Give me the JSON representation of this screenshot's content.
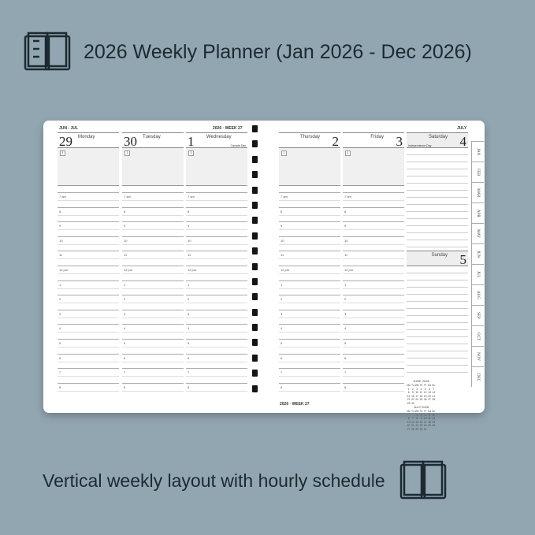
{
  "header": {
    "title": "2026 Weekly Planner (Jan 2026 - Dec 2026)",
    "icon": "open-book-icon"
  },
  "footer": {
    "title": "Vertical weekly layout with hourly schedule",
    "icon": "open-book-icon"
  },
  "planner": {
    "left_range": "JUN - JUL",
    "left_week": "2026 · WEEK 27",
    "right_month": "JULY",
    "bottom_week": "2026 · WEEK 27",
    "info_glyph": "i",
    "days": [
      {
        "num": "29",
        "name": "Monday"
      },
      {
        "num": "30",
        "name": "Tuesday"
      },
      {
        "num": "1",
        "name": "Wednesday",
        "holiday": "Canada Day"
      },
      {
        "num": "2",
        "name": "Thursday"
      },
      {
        "num": "3",
        "name": "Friday"
      },
      {
        "num": "4",
        "name": "Saturday",
        "holiday": "Independence Day"
      },
      {
        "num": "5",
        "name": "Sunday"
      }
    ],
    "hours": [
      "7 am",
      "8",
      "9",
      "10",
      "11",
      "12 pm",
      "1",
      "2",
      "3",
      "4",
      "5",
      "6",
      "7",
      "8"
    ],
    "tabs": [
      "JAN",
      "FEB",
      "MAR",
      "APR",
      "MAY",
      "JUN",
      "JUL",
      "AUG",
      "SEP",
      "OCT",
      "NOV",
      "DEC"
    ],
    "mini_calendars": [
      {
        "title": "JUNE 2026",
        "head": [
          "Mo",
          "Tu",
          "We",
          "Th",
          "Fr",
          "Sa",
          "Su"
        ],
        "weeks": [
          [
            "1",
            "2",
            "3",
            "4",
            "5",
            "6",
            "7"
          ],
          [
            "8",
            "9",
            "10",
            "11",
            "12",
            "13",
            "14"
          ],
          [
            "15",
            "16",
            "17",
            "18",
            "19",
            "20",
            "21"
          ],
          [
            "22",
            "23",
            "24",
            "25",
            "26",
            "27",
            "28"
          ],
          [
            "29",
            "30",
            "",
            "",
            "",
            "",
            ""
          ]
        ]
      },
      {
        "title": "JULY 2026",
        "head": [
          "Mo",
          "Tu",
          "We",
          "Th",
          "Fr",
          "Sa",
          "Su"
        ],
        "weeks": [
          [
            "",
            "",
            "1",
            "2",
            "3",
            "4",
            "5"
          ],
          [
            "6",
            "7",
            "8",
            "9",
            "10",
            "11",
            "12"
          ],
          [
            "13",
            "14",
            "15",
            "16",
            "17",
            "18",
            "19"
          ],
          [
            "20",
            "21",
            "22",
            "23",
            "24",
            "25",
            "26"
          ],
          [
            "27",
            "28",
            "29",
            "30",
            "31",
            "",
            ""
          ]
        ]
      }
    ]
  }
}
